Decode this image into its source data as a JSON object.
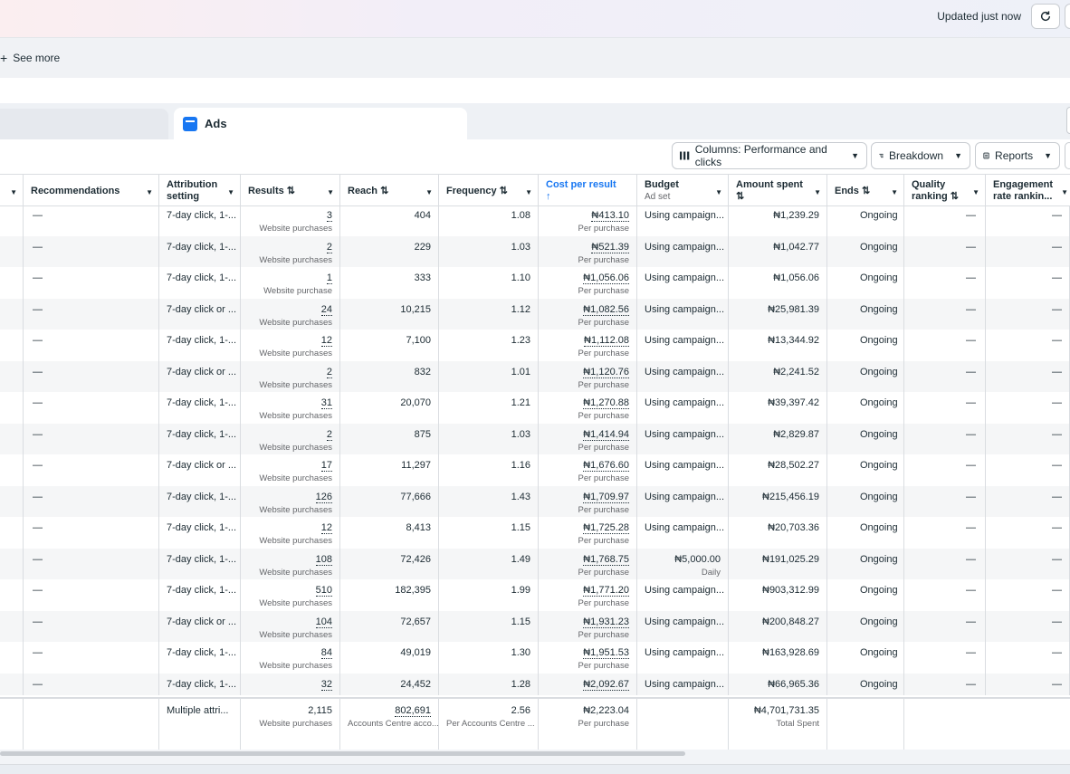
{
  "header": {
    "updated_text": "Updated just now",
    "refresh_icon": "refresh-icon"
  },
  "filters": {
    "see_more": "See more"
  },
  "tabs": {
    "ads_label": "Ads"
  },
  "toolbar": {
    "columns_label": "Columns: Performance and clicks",
    "breakdown_label": "Breakdown",
    "reports_label": "Reports"
  },
  "columns": {
    "recommendations": "Recommendations",
    "attribution_setting": "Attribution setting",
    "results": "Results ⇅",
    "reach": "Reach ⇅",
    "frequency": "Frequency ⇅",
    "cost_per_result": "Cost per result",
    "cost_per_result_arrow": "↑",
    "budget": "Budget",
    "budget_sub": "Ad set",
    "amount_spent": "Amount spent",
    "amount_spent_sort": "⇅",
    "ends": "Ends ⇅",
    "quality_ranking": "Quality ranking ⇅",
    "engagement_rate": "Engagement rate rankin..."
  },
  "rows": [
    {
      "rec": "—",
      "attr": "7-day click, 1-...",
      "results": "3",
      "results_sub": "Website purchases",
      "reach": "404",
      "freq": "1.08",
      "cpr": "₦413.10",
      "cpr_sub": "Per purchase",
      "budget": "Using campaign...",
      "budget_sub": "",
      "spent": "₦1,239.29",
      "ends": "Ongoing",
      "quality": "—",
      "engagement": "—"
    },
    {
      "rec": "—",
      "attr": "7-day click, 1-...",
      "results": "2",
      "results_sub": "Website purchases",
      "reach": "229",
      "freq": "1.03",
      "cpr": "₦521.39",
      "cpr_sub": "Per purchase",
      "budget": "Using campaign...",
      "budget_sub": "",
      "spent": "₦1,042.77",
      "ends": "Ongoing",
      "quality": "—",
      "engagement": "—"
    },
    {
      "rec": "—",
      "attr": "7-day click, 1-...",
      "results": "1",
      "results_sub": "Website purchase",
      "reach": "333",
      "freq": "1.10",
      "cpr": "₦1,056.06",
      "cpr_sub": "Per purchase",
      "budget": "Using campaign...",
      "budget_sub": "",
      "spent": "₦1,056.06",
      "ends": "Ongoing",
      "quality": "—",
      "engagement": "—"
    },
    {
      "rec": "—",
      "attr": "7-day click or ...",
      "results": "24",
      "results_sub": "Website purchases",
      "reach": "10,215",
      "freq": "1.12",
      "cpr": "₦1,082.56",
      "cpr_sub": "Per purchase",
      "budget": "Using campaign...",
      "budget_sub": "",
      "spent": "₦25,981.39",
      "ends": "Ongoing",
      "quality": "—",
      "engagement": "—"
    },
    {
      "rec": "—",
      "attr": "7-day click, 1-...",
      "results": "12",
      "results_sub": "Website purchases",
      "reach": "7,100",
      "freq": "1.23",
      "cpr": "₦1,112.08",
      "cpr_sub": "Per purchase",
      "budget": "Using campaign...",
      "budget_sub": "",
      "spent": "₦13,344.92",
      "ends": "Ongoing",
      "quality": "—",
      "engagement": "—"
    },
    {
      "rec": "—",
      "attr": "7-day click or ...",
      "results": "2",
      "results_sub": "Website purchases",
      "reach": "832",
      "freq": "1.01",
      "cpr": "₦1,120.76",
      "cpr_sub": "Per purchase",
      "budget": "Using campaign...",
      "budget_sub": "",
      "spent": "₦2,241.52",
      "ends": "Ongoing",
      "quality": "—",
      "engagement": "—"
    },
    {
      "rec": "—",
      "attr": "7-day click, 1-...",
      "results": "31",
      "results_sub": "Website purchases",
      "reach": "20,070",
      "freq": "1.21",
      "cpr": "₦1,270.88",
      "cpr_sub": "Per purchase",
      "budget": "Using campaign...",
      "budget_sub": "",
      "spent": "₦39,397.42",
      "ends": "Ongoing",
      "quality": "—",
      "engagement": "—"
    },
    {
      "rec": "—",
      "attr": "7-day click, 1-...",
      "results": "2",
      "results_sub": "Website purchases",
      "reach": "875",
      "freq": "1.03",
      "cpr": "₦1,414.94",
      "cpr_sub": "Per purchase",
      "budget": "Using campaign...",
      "budget_sub": "",
      "spent": "₦2,829.87",
      "ends": "Ongoing",
      "quality": "—",
      "engagement": "—"
    },
    {
      "rec": "—",
      "attr": "7-day click or ...",
      "results": "17",
      "results_sub": "Website purchases",
      "reach": "11,297",
      "freq": "1.16",
      "cpr": "₦1,676.60",
      "cpr_sub": "Per purchase",
      "budget": "Using campaign...",
      "budget_sub": "",
      "spent": "₦28,502.27",
      "ends": "Ongoing",
      "quality": "—",
      "engagement": "—"
    },
    {
      "rec": "—",
      "attr": "7-day click, 1-...",
      "results": "126",
      "results_sub": "Website purchases",
      "reach": "77,666",
      "freq": "1.43",
      "cpr": "₦1,709.97",
      "cpr_sub": "Per purchase",
      "budget": "Using campaign...",
      "budget_sub": "",
      "spent": "₦215,456.19",
      "ends": "Ongoing",
      "quality": "—",
      "engagement": "—"
    },
    {
      "rec": "—",
      "attr": "7-day click, 1-...",
      "results": "12",
      "results_sub": "Website purchases",
      "reach": "8,413",
      "freq": "1.15",
      "cpr": "₦1,725.28",
      "cpr_sub": "Per purchase",
      "budget": "Using campaign...",
      "budget_sub": "",
      "spent": "₦20,703.36",
      "ends": "Ongoing",
      "quality": "—",
      "engagement": "—"
    },
    {
      "rec": "—",
      "attr": "7-day click, 1-...",
      "results": "108",
      "results_sub": "Website purchases",
      "reach": "72,426",
      "freq": "1.49",
      "cpr": "₦1,768.75",
      "cpr_sub": "Per purchase",
      "budget": "₦5,000.00",
      "budget_sub": "Daily",
      "spent": "₦191,025.29",
      "ends": "Ongoing",
      "quality": "—",
      "engagement": "—"
    },
    {
      "rec": "—",
      "attr": "7-day click, 1-...",
      "results": "510",
      "results_sub": "Website purchases",
      "reach": "182,395",
      "freq": "1.99",
      "cpr": "₦1,771.20",
      "cpr_sub": "Per purchase",
      "budget": "Using campaign...",
      "budget_sub": "",
      "spent": "₦903,312.99",
      "ends": "Ongoing",
      "quality": "—",
      "engagement": "—"
    },
    {
      "rec": "—",
      "attr": "7-day click or ...",
      "results": "104",
      "results_sub": "Website purchases",
      "reach": "72,657",
      "freq": "1.15",
      "cpr": "₦1,931.23",
      "cpr_sub": "Per purchase",
      "budget": "Using campaign...",
      "budget_sub": "",
      "spent": "₦200,848.27",
      "ends": "Ongoing",
      "quality": "—",
      "engagement": "—"
    },
    {
      "rec": "—",
      "attr": "7-day click, 1-...",
      "results": "84",
      "results_sub": "Website purchases",
      "reach": "49,019",
      "freq": "1.30",
      "cpr": "₦1,951.53",
      "cpr_sub": "Per purchase",
      "budget": "Using campaign...",
      "budget_sub": "",
      "spent": "₦163,928.69",
      "ends": "Ongoing",
      "quality": "—",
      "engagement": "—"
    },
    {
      "rec": "—",
      "attr": "7-day click, 1-...",
      "results": "32",
      "results_sub": "",
      "reach": "24,452",
      "freq": "1.28",
      "cpr": "₦2,092.67",
      "cpr_sub": "",
      "budget": "Using campaign...",
      "budget_sub": "",
      "spent": "₦66,965.36",
      "ends": "Ongoing",
      "quality": "—",
      "engagement": "—"
    }
  ],
  "totals": {
    "attr": "Multiple attri...",
    "results": "2,115",
    "results_sub": "Website purchases",
    "reach": "802,691",
    "reach_sub": "Accounts Centre acco...",
    "freq": "2.56",
    "freq_sub": "Per Accounts Centre ...",
    "cpr": "₦2,223.04",
    "cpr_sub": "Per purchase",
    "spent": "₦4,701,731.35",
    "spent_sub": "Total Spent"
  }
}
